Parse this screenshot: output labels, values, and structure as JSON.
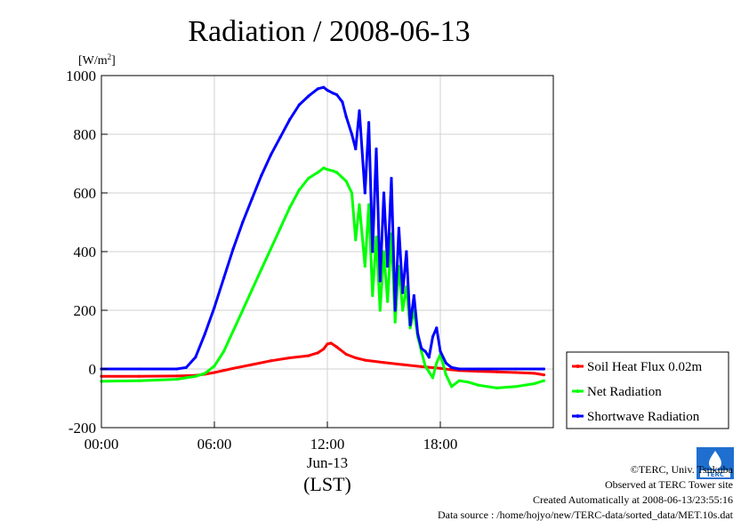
{
  "chart_data": {
    "type": "line",
    "title": "Radiation / 2008-06-13",
    "ylabel": "[W/m2]",
    "ylabel_base": "[W/m",
    "ylabel_sup": "2",
    "ylabel_close": "]",
    "xlabel_date": "Jun-13",
    "xlabel_unit": "(LST)",
    "xlim": [
      0,
      24
    ],
    "ylim": [
      -200,
      1000
    ],
    "x_ticks": [
      0,
      6,
      12,
      18
    ],
    "x_tick_labels": [
      "00:00",
      "06:00",
      "12:00",
      "18:00"
    ],
    "y_ticks": [
      -200,
      0,
      200,
      400,
      600,
      800,
      1000
    ],
    "y_tick_labels": [
      "-200",
      "0",
      "200",
      "400",
      "600",
      "800",
      "1000"
    ],
    "grid": true,
    "legend_position": "right-bottom",
    "series": [
      {
        "name": "Soil Heat Flux 0.02m",
        "color": "#ff0000",
        "x": [
          0,
          2,
          4,
          5,
          5.5,
          6,
          6.5,
          7,
          8,
          9,
          10,
          11,
          11.5,
          11.8,
          12,
          12.2,
          12.5,
          13,
          13.5,
          14,
          15,
          16,
          17,
          18,
          18.5,
          19,
          20,
          21,
          22,
          23,
          23.5
        ],
        "y": [
          -25,
          -25,
          -24,
          -22,
          -18,
          -12,
          -5,
          2,
          15,
          28,
          38,
          45,
          55,
          68,
          85,
          88,
          75,
          50,
          38,
          30,
          22,
          15,
          8,
          2,
          -2,
          -5,
          -8,
          -10,
          -12,
          -15,
          -20
        ]
      },
      {
        "name": "Net Radiation",
        "color": "#00ff00",
        "x": [
          0,
          2,
          4,
          4.5,
          5,
          5.5,
          6,
          6.5,
          7,
          7.5,
          8,
          8.5,
          9,
          9.5,
          10,
          10.5,
          11,
          11.5,
          11.8,
          12,
          12.3,
          12.5,
          13,
          13.3,
          13.5,
          13.7,
          14,
          14.2,
          14.4,
          14.6,
          14.8,
          15,
          15.2,
          15.4,
          15.6,
          15.8,
          16,
          16.2,
          16.4,
          16.6,
          16.8,
          17,
          17.2,
          17.4,
          17.6,
          17.8,
          18,
          18.3,
          18.6,
          19,
          19.5,
          20,
          20.5,
          21,
          22,
          23,
          23.5
        ],
        "y": [
          -42,
          -40,
          -35,
          -30,
          -25,
          -15,
          10,
          60,
          130,
          200,
          270,
          340,
          410,
          480,
          550,
          610,
          650,
          670,
          685,
          680,
          675,
          670,
          640,
          600,
          440,
          560,
          350,
          560,
          250,
          450,
          200,
          400,
          230,
          460,
          160,
          350,
          200,
          280,
          140,
          200,
          110,
          60,
          10,
          -10,
          -30,
          20,
          50,
          -20,
          -60,
          -40,
          -45,
          -55,
          -60,
          -65,
          -60,
          -50,
          -40
        ]
      },
      {
        "name": "Shortwave Radiation",
        "color": "#0000ff",
        "x": [
          0,
          2,
          4,
          4.5,
          5,
          5.5,
          6,
          6.5,
          7,
          7.5,
          8,
          8.5,
          9,
          9.5,
          10,
          10.5,
          11,
          11.5,
          11.8,
          12,
          12.3,
          12.5,
          12.8,
          13,
          13.3,
          13.5,
          13.7,
          14,
          14.2,
          14.4,
          14.6,
          14.8,
          15,
          15.2,
          15.4,
          15.6,
          15.8,
          16,
          16.2,
          16.4,
          16.6,
          16.8,
          17,
          17.2,
          17.4,
          17.6,
          17.8,
          18,
          18.3,
          18.6,
          19,
          20,
          22,
          23.5
        ],
        "y": [
          0,
          0,
          0,
          5,
          40,
          120,
          210,
          310,
          410,
          500,
          580,
          660,
          730,
          790,
          850,
          900,
          930,
          955,
          960,
          950,
          940,
          935,
          910,
          860,
          800,
          750,
          880,
          600,
          840,
          400,
          750,
          300,
          600,
          350,
          650,
          200,
          480,
          260,
          400,
          150,
          250,
          120,
          70,
          60,
          40,
          110,
          140,
          60,
          20,
          5,
          0,
          0,
          0,
          0
        ]
      }
    ]
  },
  "footer": {
    "copyright": "©TERC, Univ. Tsukuba",
    "observed": "Observed at TERC Tower site",
    "created": "Created Automatically at 2008-06-13/23:55:16",
    "source": "Data source : /home/hojyo/new/TERC-data/sorted_data/MET.10s.dat",
    "logo_text": "TERC"
  }
}
